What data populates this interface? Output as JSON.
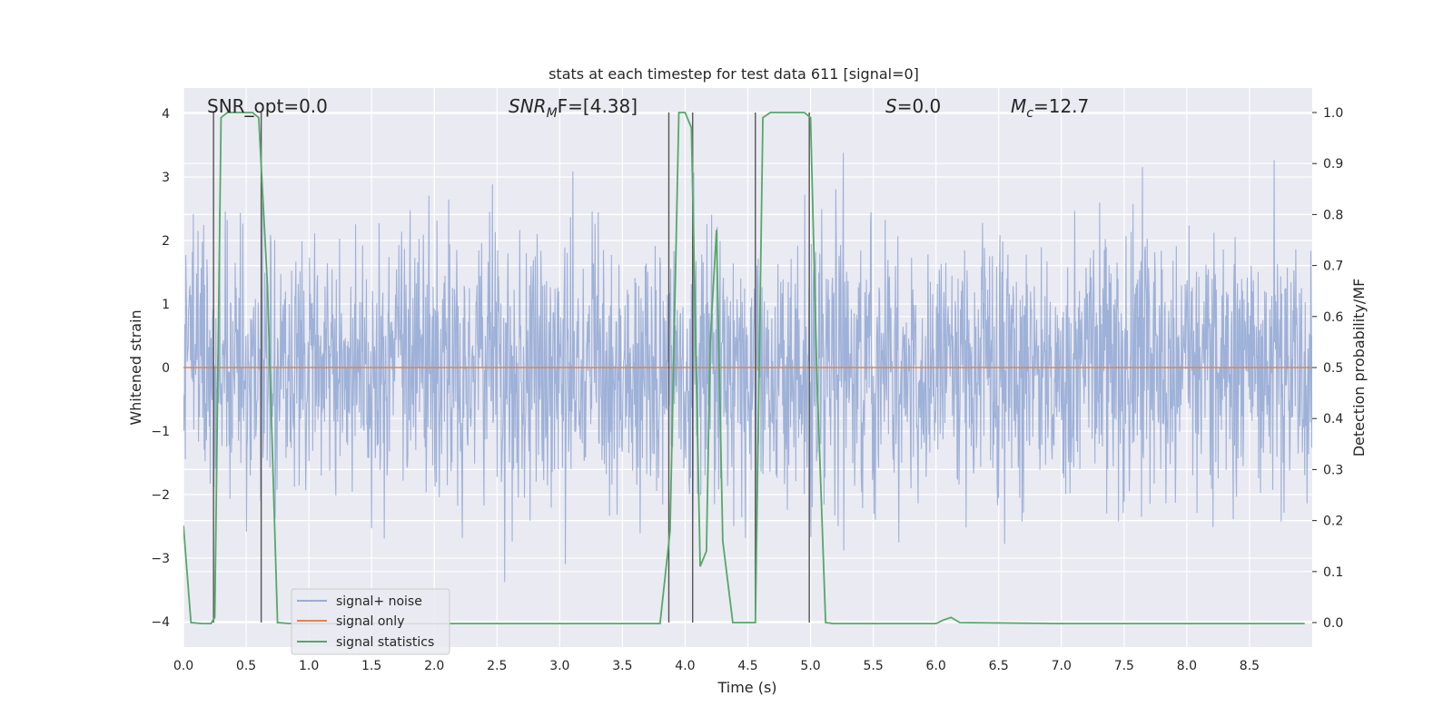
{
  "chart_data": {
    "type": "line",
    "title": "stats at each timestep for test data 611 [signal=0]",
    "xlabel": "Time (s)",
    "ylabel": "Whitened strain",
    "y2label": "Detection probability/MF",
    "xlim": [
      0.0,
      9.0
    ],
    "ylim": [
      -4.4,
      4.4
    ],
    "y2lim": [
      -0.048,
      1.048
    ],
    "x_ticks": [
      "0.0",
      "0.5",
      "1.0",
      "1.5",
      "2.0",
      "2.5",
      "3.0",
      "3.5",
      "4.0",
      "4.5",
      "5.0",
      "5.5",
      "6.0",
      "6.5",
      "7.0",
      "7.5",
      "8.0",
      "8.5"
    ],
    "y_ticks": [
      "4",
      "3",
      "2",
      "1",
      "0",
      "−1",
      "−2",
      "−3",
      "−4"
    ],
    "y2_ticks": [
      "1.0",
      "0.9",
      "0.8",
      "0.7",
      "0.6",
      "0.5",
      "0.4",
      "0.3",
      "0.2",
      "0.1",
      "0.0"
    ],
    "grid": true,
    "legend_position": "lower-left",
    "annotations": {
      "snr_opt": "SNR_opt=0.0",
      "snr_mf_sym": "SNR",
      "snr_mf_sub": "M",
      "snr_mf_rest": "F=[4.38]",
      "s_sym": "S",
      "s_rest": "=0.0",
      "mc_sym": "M",
      "mc_sub": "c",
      "mc_rest": "=12.7"
    },
    "series": [
      {
        "name": "signal+ noise",
        "color": "#9aaed6",
        "description_stat": "whitened noise, approx. Gaussian, peaks within ±4",
        "envelope_abs": 4.0
      },
      {
        "name": "signal only",
        "color": "#dd8452",
        "value": 0.0
      },
      {
        "name": "signal statistics",
        "color": "#55a868",
        "axis": "right",
        "points": [
          [
            0.0,
            0.19
          ],
          [
            0.06,
            0.0
          ],
          [
            0.15,
            -0.002
          ],
          [
            0.22,
            -0.002
          ],
          [
            0.25,
            0.01
          ],
          [
            0.3,
            0.99
          ],
          [
            0.35,
            1.0
          ],
          [
            0.45,
            1.0
          ],
          [
            0.55,
            1.0
          ],
          [
            0.6,
            0.99
          ],
          [
            0.67,
            0.66
          ],
          [
            0.75,
            0.0
          ],
          [
            0.85,
            -0.002
          ],
          [
            1.0,
            -0.002
          ],
          [
            2.0,
            -0.002
          ],
          [
            3.0,
            -0.002
          ],
          [
            3.8,
            -0.002
          ],
          [
            3.88,
            0.18
          ],
          [
            3.95,
            1.0
          ],
          [
            4.0,
            1.0
          ],
          [
            4.05,
            0.97
          ],
          [
            4.12,
            0.11
          ],
          [
            4.17,
            0.14
          ],
          [
            4.2,
            0.55
          ],
          [
            4.25,
            0.77
          ],
          [
            4.3,
            0.16
          ],
          [
            4.38,
            0.0
          ],
          [
            4.5,
            0.0
          ],
          [
            4.56,
            0.0
          ],
          [
            4.62,
            0.99
          ],
          [
            4.68,
            1.0
          ],
          [
            4.85,
            1.0
          ],
          [
            4.95,
            1.0
          ],
          [
            5.0,
            0.99
          ],
          [
            5.05,
            0.49
          ],
          [
            5.12,
            0.0
          ],
          [
            5.18,
            -0.002
          ],
          [
            5.5,
            -0.002
          ],
          [
            6.0,
            -0.002
          ],
          [
            6.06,
            0.005
          ],
          [
            6.12,
            0.01
          ],
          [
            6.19,
            0.0
          ],
          [
            7.0,
            -0.002
          ],
          [
            8.0,
            -0.002
          ],
          [
            8.94,
            -0.002
          ]
        ]
      }
    ],
    "vertical_markers": {
      "color": "#555555",
      "times": [
        0.24,
        0.62,
        3.87,
        4.06,
        4.56,
        4.99
      ]
    }
  }
}
